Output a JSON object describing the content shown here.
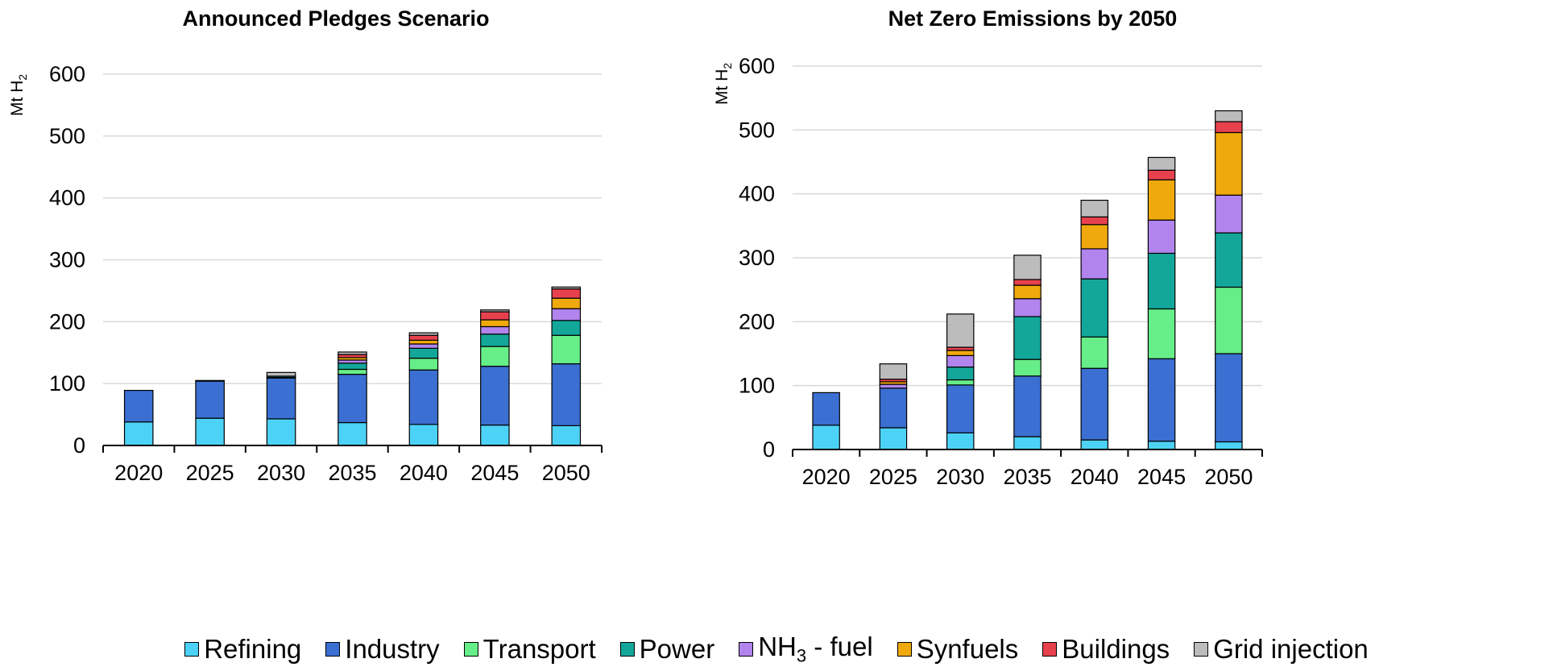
{
  "chart_data": [
    {
      "type": "bar",
      "stacked": true,
      "title": "Announced Pledges Scenario",
      "ylabel": "Mt H₂",
      "ylim": [
        0,
        600
      ],
      "yticks": [
        0,
        100,
        200,
        300,
        400,
        500,
        600
      ],
      "grid": true,
      "categories": [
        "2020",
        "2025",
        "2030",
        "2035",
        "2040",
        "2045",
        "2050"
      ],
      "series": [
        {
          "name": "Refining",
          "values": [
            38,
            44,
            43,
            37,
            34,
            33,
            32
          ]
        },
        {
          "name": "Industry",
          "values": [
            51,
            60,
            66,
            78,
            88,
            95,
            100
          ]
        },
        {
          "name": "Transport",
          "values": [
            0,
            0,
            1,
            8,
            19,
            32,
            46
          ]
        },
        {
          "name": "Power",
          "values": [
            0,
            0,
            2,
            10,
            16,
            20,
            24
          ]
        },
        {
          "name": "NH₃ - fuel",
          "values": [
            0,
            0,
            0,
            5,
            7,
            12,
            19
          ]
        },
        {
          "name": "Synfuels",
          "values": [
            0,
            0,
            0,
            4,
            6,
            11,
            17
          ]
        },
        {
          "name": "Buildings",
          "values": [
            0,
            0,
            0,
            5,
            8,
            13,
            15
          ]
        },
        {
          "name": "Grid injection",
          "values": [
            0,
            1,
            6,
            4,
            4,
            3,
            3
          ]
        }
      ]
    },
    {
      "type": "bar",
      "stacked": true,
      "title": "Net Zero Emissions by 2050",
      "ylabel": "Mt H₂",
      "ylim": [
        0,
        600
      ],
      "yticks": [
        0,
        100,
        200,
        300,
        400,
        500,
        600
      ],
      "grid": true,
      "categories": [
        "2020",
        "2025",
        "2030",
        "2035",
        "2040",
        "2045",
        "2050"
      ],
      "series": [
        {
          "name": "Refining",
          "values": [
            38,
            34,
            26,
            20,
            15,
            13,
            12
          ]
        },
        {
          "name": "Industry",
          "values": [
            51,
            62,
            75,
            95,
            112,
            129,
            138
          ]
        },
        {
          "name": "Transport",
          "values": [
            0,
            0,
            8,
            26,
            49,
            78,
            104
          ]
        },
        {
          "name": "Power",
          "values": [
            0,
            0,
            20,
            67,
            91,
            87,
            85
          ]
        },
        {
          "name": "NH₃ - fuel",
          "values": [
            0,
            6,
            18,
            28,
            47,
            52,
            59
          ]
        },
        {
          "name": "Synfuels",
          "values": [
            0,
            4,
            8,
            21,
            38,
            63,
            98
          ]
        },
        {
          "name": "Buildings",
          "values": [
            0,
            4,
            5,
            9,
            12,
            15,
            17
          ]
        },
        {
          "name": "Grid injection",
          "values": [
            0,
            24,
            52,
            38,
            26,
            20,
            17
          ]
        }
      ]
    }
  ],
  "legend": {
    "items": [
      {
        "label_main": "Refining",
        "label_sub": "",
        "label_rest": "",
        "color": "#4dd2f7"
      },
      {
        "label_main": "Industry",
        "label_sub": "",
        "label_rest": "",
        "color": "#3b6fd1"
      },
      {
        "label_main": "Transport",
        "label_sub": "",
        "label_rest": "",
        "color": "#66ee88"
      },
      {
        "label_main": "Power",
        "label_sub": "",
        "label_rest": "",
        "color": "#13a79a"
      },
      {
        "label_main": "NH",
        "label_sub": "3",
        "label_rest": " - fuel",
        "color": "#b184ee"
      },
      {
        "label_main": "Synfuels",
        "label_sub": "",
        "label_rest": "",
        "color": "#f0a90c"
      },
      {
        "label_main": "Buildings",
        "label_sub": "",
        "label_rest": "",
        "color": "#e8414e"
      },
      {
        "label_main": "Grid injection",
        "label_sub": "",
        "label_rest": "",
        "color": "#bcbcbc"
      }
    ]
  }
}
